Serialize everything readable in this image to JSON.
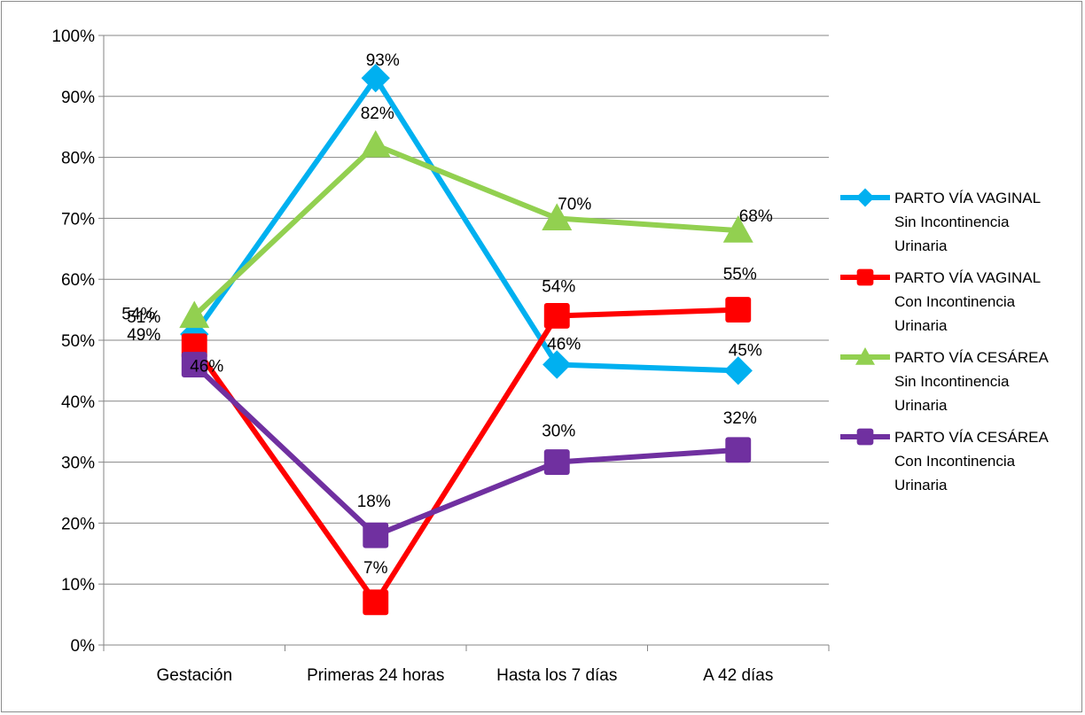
{
  "chart_data": {
    "type": "line",
    "categories": [
      "Gestación",
      "Primeras 24 horas",
      "Hasta los 7 días",
      "A 42 días"
    ],
    "ylim": [
      0,
      100
    ],
    "yticks": [
      "0%",
      "10%",
      "20%",
      "30%",
      "40%",
      "50%",
      "60%",
      "70%",
      "80%",
      "90%",
      "100%"
    ],
    "grid": "horizontal",
    "legend_position": "right",
    "series": [
      {
        "name": "PARTO VÍA VAGINAL Sin Incontinencia Urinaria",
        "legend_lines": [
          "PARTO VÍA VAGINAL",
          "Sin Incontinencia",
          "Urinaria"
        ],
        "color": "#00b0f0",
        "marker": "diamond",
        "values": [
          51,
          93,
          46,
          45
        ],
        "labels": [
          "51%",
          "93%",
          "46%",
          "45%"
        ]
      },
      {
        "name": "PARTO VÍA VAGINAL Con Incontinencia Urinaria",
        "legend_lines": [
          "PARTO VÍA VAGINAL",
          "Con Incontinencia",
          "Urinaria"
        ],
        "color": "#ff0000",
        "marker": "square",
        "values": [
          49,
          7,
          54,
          55
        ],
        "labels": [
          "49%",
          "7%",
          "54%",
          "55%"
        ]
      },
      {
        "name": "PARTO VÍA CESÁREA Sin Incontinencia Urinaria",
        "legend_lines": [
          "PARTO VÍA CESÁREA",
          "Sin Incontinencia",
          "Urinaria"
        ],
        "color": "#92d050",
        "marker": "triangle",
        "values": [
          54,
          82,
          70,
          68
        ],
        "labels": [
          "54%",
          "82%",
          "70%",
          "68%"
        ]
      },
      {
        "name": "PARTO VÍA CESÁREA Con Incontinencia Urinaria",
        "legend_lines": [
          "PARTO VÍA CESÁREA",
          "Con Incontinencia",
          "Urinaria"
        ],
        "color": "#7030a0",
        "marker": "square",
        "values": [
          46,
          18,
          30,
          32
        ],
        "labels": [
          "46%",
          "18%",
          "30%",
          "32%"
        ]
      }
    ]
  }
}
